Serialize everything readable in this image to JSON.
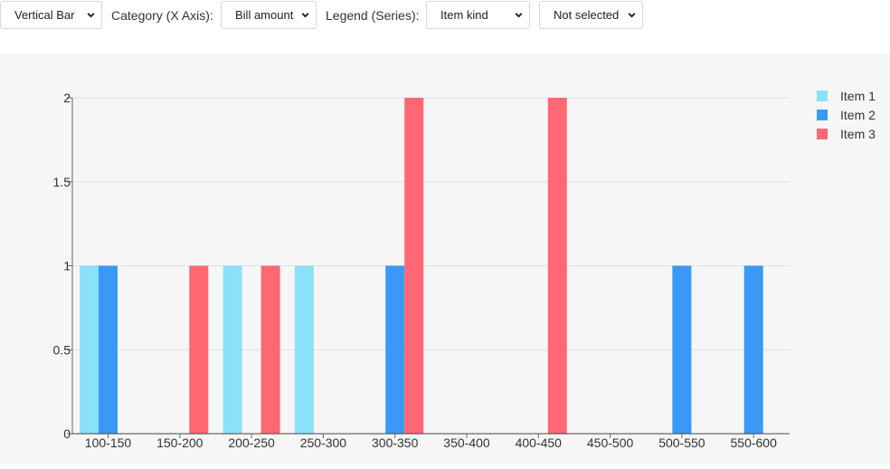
{
  "controls": {
    "chart_type": {
      "value": "Vertical Bar"
    },
    "category_label": "Category (X Axis):",
    "category": {
      "value": "Bill amount"
    },
    "legend_label": "Legend (Series):",
    "legend": {
      "value": "Item kind"
    },
    "extra": {
      "value": "Not selected"
    }
  },
  "chart_data": {
    "type": "bar",
    "categories": [
      "100-150",
      "150-200",
      "200-250",
      "250-300",
      "300-350",
      "350-400",
      "400-450",
      "450-500",
      "500-550",
      "550-600"
    ],
    "series": [
      {
        "name": "Item 1",
        "color": "#89e2f9",
        "values": [
          1,
          0,
          1,
          1,
          0,
          0,
          0,
          0,
          0,
          0
        ]
      },
      {
        "name": "Item 2",
        "color": "#3a99f7",
        "values": [
          1,
          0,
          0,
          0,
          1,
          0,
          0,
          0,
          1,
          1
        ]
      },
      {
        "name": "Item 3",
        "color": "#ff6772",
        "values": [
          0,
          1,
          1,
          0,
          2,
          0,
          2,
          0,
          0,
          0
        ]
      }
    ],
    "yticks": [
      "0",
      "0.5",
      "1",
      "1.5",
      "2"
    ],
    "ylim": [
      0,
      2
    ],
    "grid": true,
    "legend_position": "top-right"
  }
}
